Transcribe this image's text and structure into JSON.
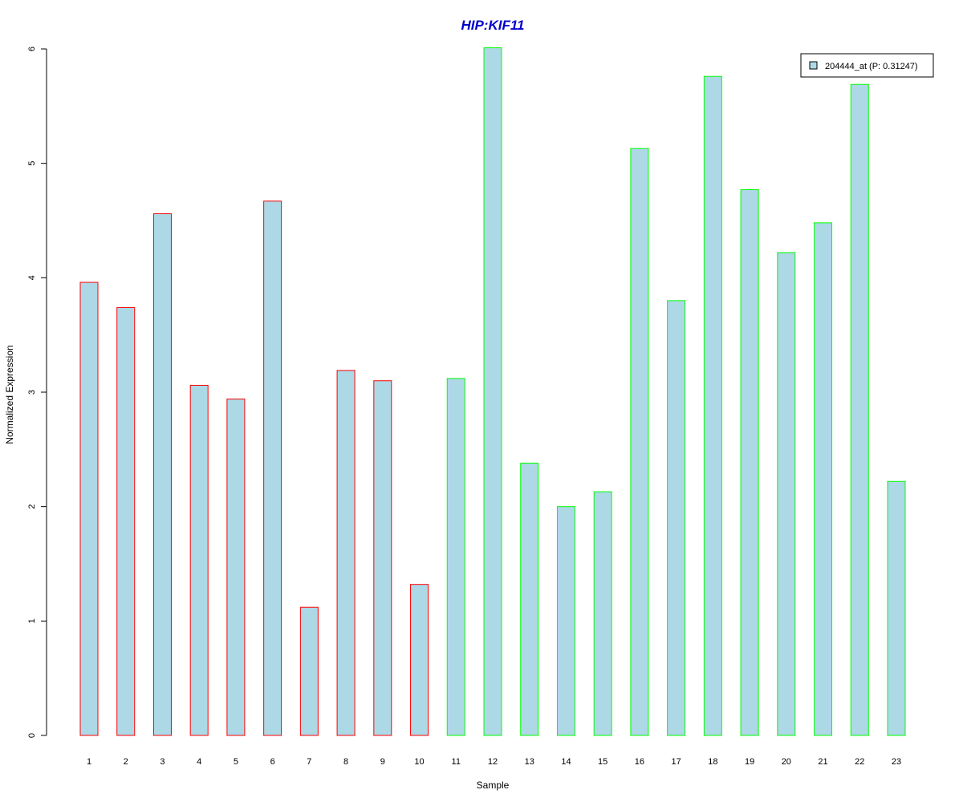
{
  "chart_data": {
    "type": "bar",
    "title": "HIP:KIF11",
    "xlabel": "Sample",
    "ylabel": "Normalized Expression",
    "categories": [
      "1",
      "2",
      "3",
      "4",
      "5",
      "6",
      "7",
      "8",
      "9",
      "10",
      "11",
      "12",
      "13",
      "14",
      "15",
      "16",
      "17",
      "18",
      "19",
      "20",
      "21",
      "22",
      "23"
    ],
    "values": [
      3.96,
      3.74,
      4.56,
      3.06,
      2.94,
      4.67,
      1.12,
      3.19,
      3.1,
      1.32,
      3.12,
      6.01,
      2.38,
      2.0,
      2.13,
      5.13,
      3.8,
      5.76,
      4.77,
      4.22,
      4.48,
      5.69,
      2.22
    ],
    "ylim": [
      0,
      6
    ],
    "yticks": [
      "0",
      "1",
      "2",
      "3",
      "4",
      "5",
      "6"
    ],
    "group_of_bar": [
      "red",
      "red",
      "red",
      "red",
      "red",
      "red",
      "red",
      "red",
      "red",
      "red",
      "green",
      "green",
      "green",
      "green",
      "green",
      "green",
      "green",
      "green",
      "green",
      "green",
      "green",
      "green",
      "green"
    ],
    "series": [
      {
        "name": "204444_at (P: 0.31247)",
        "values": [
          3.96,
          3.74,
          4.56,
          3.06,
          2.94,
          4.67,
          1.12,
          3.19,
          3.1,
          1.32,
          3.12,
          6.01,
          2.38,
          2.0,
          2.13,
          5.13,
          3.8,
          5.76,
          4.77,
          4.22,
          4.48,
          5.69,
          2.22
        ]
      }
    ],
    "legend_position": "top-right",
    "grid": false,
    "colors": {
      "bar_fill": "#add8e6",
      "border_red": "#ff0000",
      "border_green": "#00ff00",
      "title": "#0000cd",
      "axis": "#000000"
    }
  }
}
